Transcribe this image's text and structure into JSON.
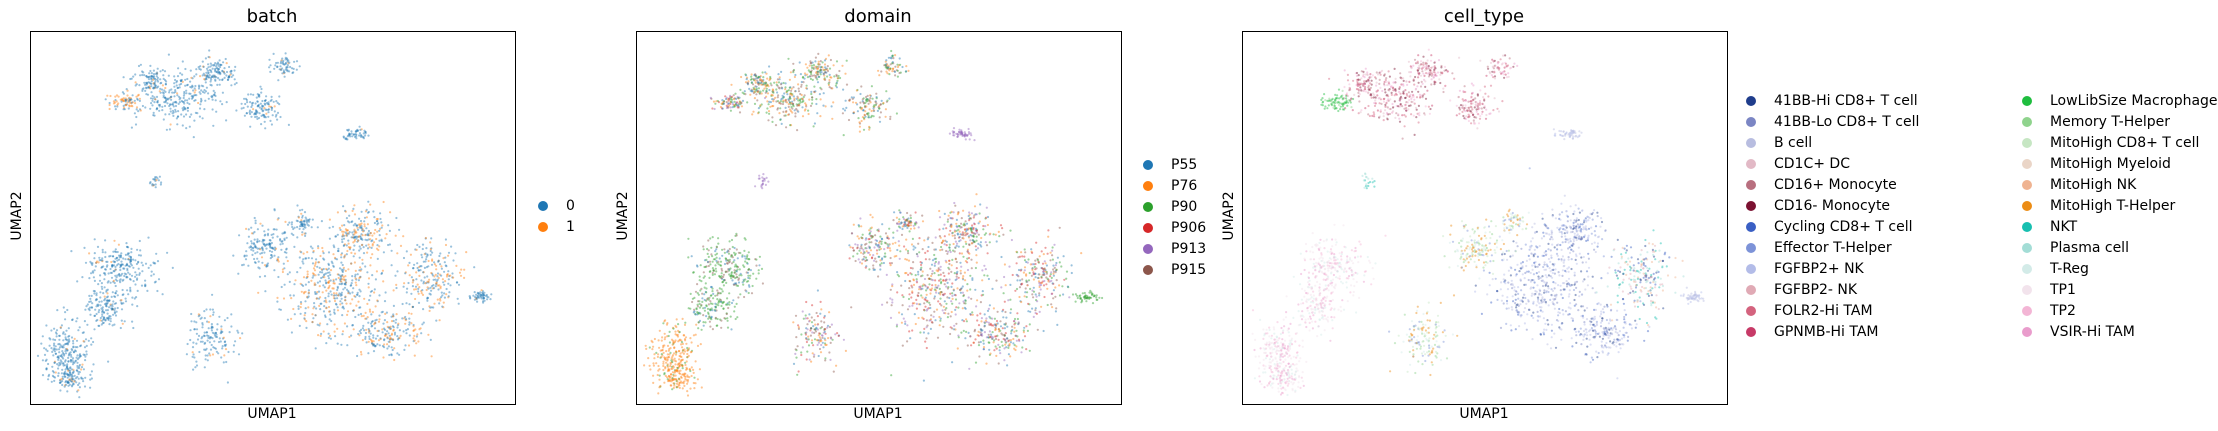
{
  "chart_data": [
    {
      "type": "scatter",
      "title": "batch",
      "xlabel": "UMAP1",
      "ylabel": "UMAP2",
      "grid": false,
      "legend_position": "right",
      "legend_columns": 1,
      "series": [
        {
          "name": "0",
          "color": "#1f77b4"
        },
        {
          "name": "1",
          "color": "#ff7f0e"
        }
      ]
    },
    {
      "type": "scatter",
      "title": "domain",
      "xlabel": "UMAP1",
      "ylabel": "UMAP2",
      "grid": false,
      "legend_position": "right",
      "legend_columns": 1,
      "series": [
        {
          "name": "P55",
          "color": "#1f77b4"
        },
        {
          "name": "P76",
          "color": "#ff7f0e"
        },
        {
          "name": "P90",
          "color": "#2ca02c"
        },
        {
          "name": "P906",
          "color": "#d62728"
        },
        {
          "name": "P913",
          "color": "#9467bd"
        },
        {
          "name": "P915",
          "color": "#8c564b"
        }
      ]
    },
    {
      "type": "scatter",
      "title": "cell_type",
      "xlabel": "UMAP1",
      "ylabel": "UMAP2",
      "grid": false,
      "legend_position": "right",
      "legend_columns": 2,
      "series": [
        {
          "name": "41BB-Hi CD8+ T cell",
          "color": "#1f3d8c"
        },
        {
          "name": "41BB-Lo CD8+ T cell",
          "color": "#7b86c4"
        },
        {
          "name": "B cell",
          "color": "#b8bde0"
        },
        {
          "name": "CD1C+ DC",
          "color": "#e2b9c6"
        },
        {
          "name": "CD16+ Monocyte",
          "color": "#b86f7f"
        },
        {
          "name": "CD16- Monocyte",
          "color": "#7b1131"
        },
        {
          "name": "Cycling CD8+ T cell",
          "color": "#3a5fc4"
        },
        {
          "name": "Effector T-Helper",
          "color": "#7d93d8"
        },
        {
          "name": "FGFBP2+ NK",
          "color": "#b3bce8"
        },
        {
          "name": "FGFBP2- NK",
          "color": "#e0aab5"
        },
        {
          "name": "FOLR2-Hi TAM",
          "color": "#d4637e"
        },
        {
          "name": "GPNMB-Hi TAM",
          "color": "#c73a67"
        },
        {
          "name": "LowLibSize Macrophage",
          "color": "#1fbd3f"
        },
        {
          "name": "Memory T-Helper",
          "color": "#8fd38d"
        },
        {
          "name": "MitoHigh CD8+ T cell",
          "color": "#c6e6c3"
        },
        {
          "name": "MitoHigh Myeloid",
          "color": "#ead5c7"
        },
        {
          "name": "MitoHigh NK",
          "color": "#efb391"
        },
        {
          "name": "MitoHigh T-Helper",
          "color": "#ec8c14"
        },
        {
          "name": "NKT",
          "color": "#17bfb0"
        },
        {
          "name": "Plasma cell",
          "color": "#a3ddd6"
        },
        {
          "name": "T-Reg",
          "color": "#d3ebe8"
        },
        {
          "name": "TP1",
          "color": "#f2e3ec"
        },
        {
          "name": "TP2",
          "color": "#f3b5d5"
        },
        {
          "name": "VSIR-Hi TAM",
          "color": "#e99ccc"
        }
      ]
    }
  ]
}
